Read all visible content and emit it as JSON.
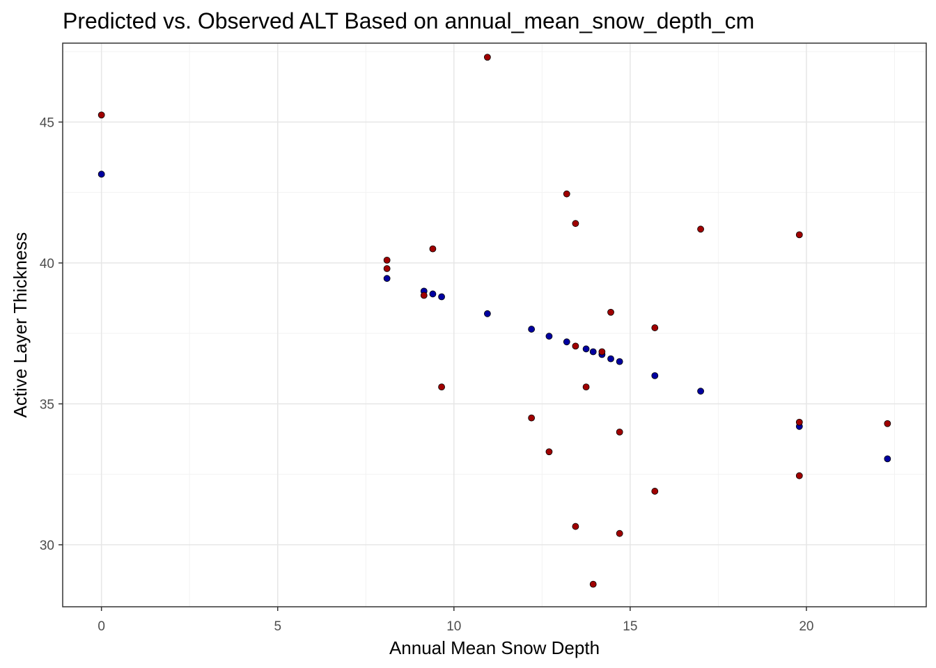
{
  "chart_data": {
    "type": "scatter",
    "title": "Predicted vs. Observed ALT Based on annual_mean_snow_depth_cm",
    "xlabel": "Annual Mean Snow Depth",
    "ylabel": "Active Layer Thickness",
    "xlim": [
      -1.1,
      23.4
    ],
    "ylim": [
      27.8,
      47.8
    ],
    "x_ticks": [
      "0",
      "5",
      "10",
      "15",
      "20"
    ],
    "y_ticks": [
      "30",
      "35",
      "40",
      "45"
    ],
    "grid": true,
    "legend": "none",
    "series": [
      {
        "color": "#0000A0",
        "points": [
          [
            0.0,
            43.15
          ],
          [
            8.1,
            39.45
          ],
          [
            9.15,
            39.0
          ],
          [
            9.4,
            38.9
          ],
          [
            9.65,
            38.8
          ],
          [
            10.95,
            38.2
          ],
          [
            12.2,
            37.65
          ],
          [
            12.7,
            37.4
          ],
          [
            13.2,
            37.2
          ],
          [
            13.75,
            36.95
          ],
          [
            13.95,
            36.85
          ],
          [
            14.2,
            36.75
          ],
          [
            14.45,
            36.6
          ],
          [
            14.7,
            36.5
          ],
          [
            15.7,
            36.0
          ],
          [
            17.0,
            35.45
          ],
          [
            19.8,
            34.2
          ],
          [
            22.3,
            33.05
          ]
        ]
      },
      {
        "color": "#A00000",
        "points": [
          [
            0.0,
            45.25
          ],
          [
            8.1,
            40.1
          ],
          [
            8.1,
            39.8
          ],
          [
            9.15,
            38.85
          ],
          [
            9.4,
            40.5
          ],
          [
            9.65,
            35.6
          ],
          [
            10.95,
            47.3
          ],
          [
            12.2,
            34.5
          ],
          [
            12.7,
            33.3
          ],
          [
            13.2,
            42.45
          ],
          [
            13.45,
            41.4
          ],
          [
            13.45,
            37.05
          ],
          [
            13.45,
            30.65
          ],
          [
            13.75,
            35.6
          ],
          [
            13.95,
            28.6
          ],
          [
            14.2,
            36.85
          ],
          [
            14.45,
            38.25
          ],
          [
            14.7,
            34.0
          ],
          [
            14.7,
            30.4
          ],
          [
            15.7,
            37.7
          ],
          [
            15.7,
            31.9
          ],
          [
            17.0,
            41.2
          ],
          [
            19.8,
            41.0
          ],
          [
            19.8,
            34.35
          ],
          [
            19.8,
            32.45
          ],
          [
            22.3,
            34.3
          ]
        ]
      }
    ]
  }
}
